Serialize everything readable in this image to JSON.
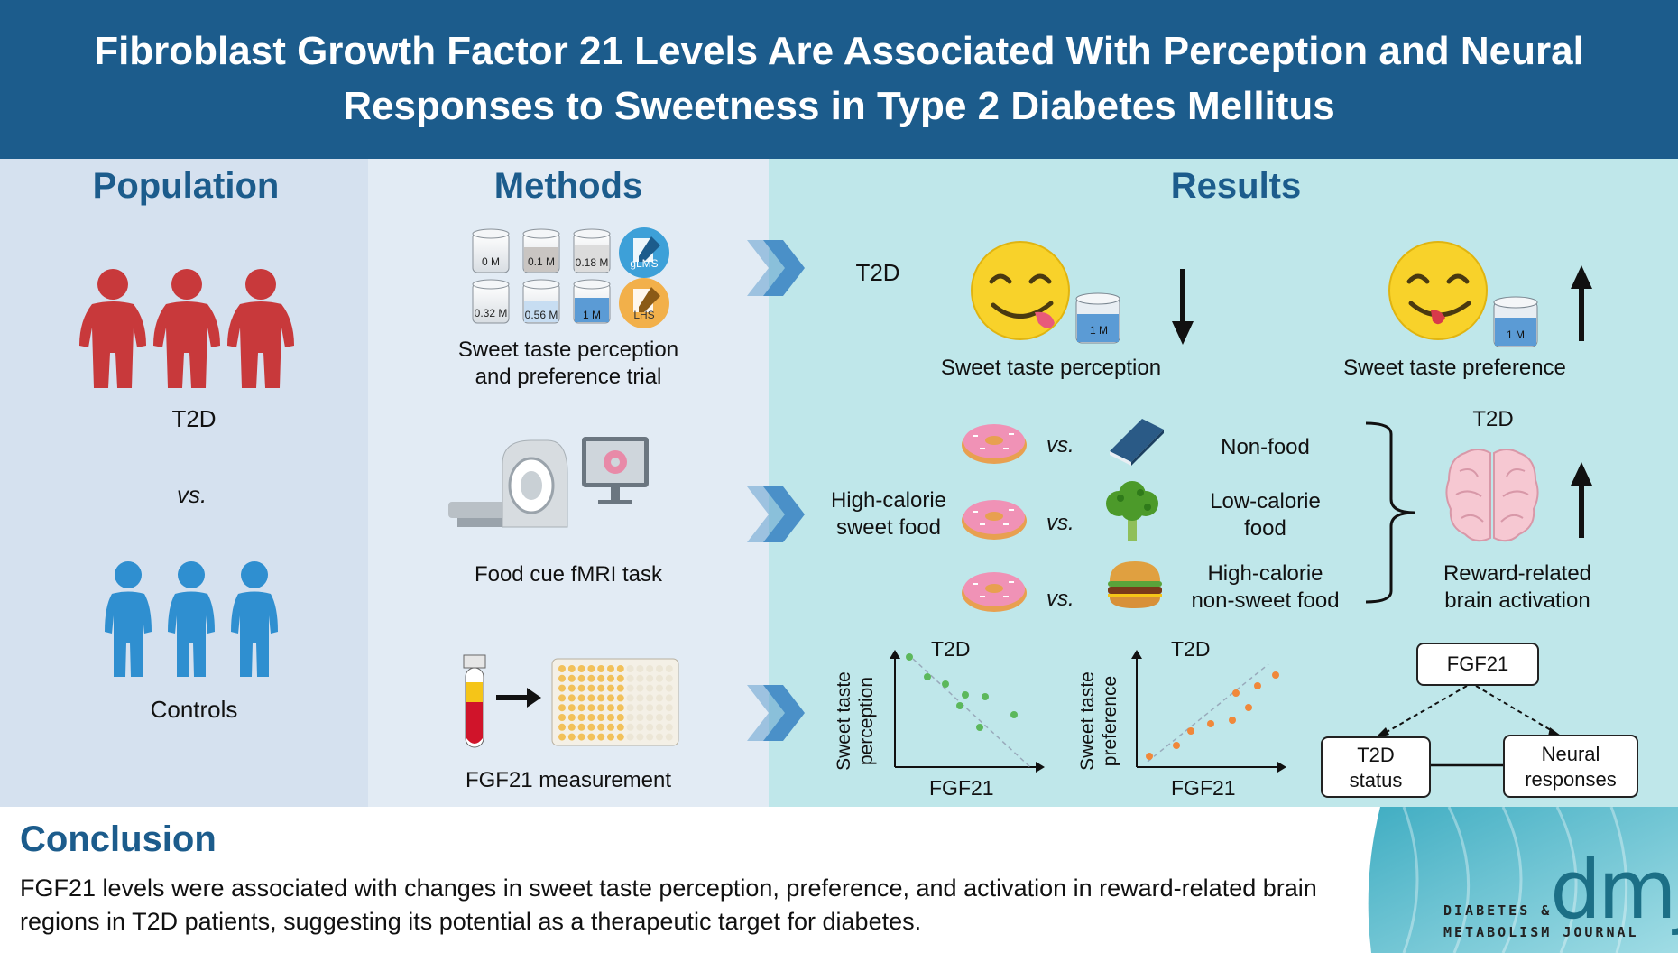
{
  "title": "Fibroblast Growth Factor 21 Levels Are Associated With Perception and Neural Responses to Sweetness in Type 2 Diabetes Mellitus",
  "population": {
    "heading": "Population",
    "group1": "T2D",
    "vs": "vs.",
    "group2": "Controls"
  },
  "methods": {
    "heading": "Methods",
    "cups": [
      "0 M",
      "0.1 M",
      "0.18 M",
      "0.32 M",
      "0.56 M",
      "1 M"
    ],
    "scale_badges": [
      "gLMS",
      "LHS"
    ],
    "trial_label_line1": "Sweet taste perception",
    "trial_label_line2": "and preference trial",
    "fmri_label": "Food cue fMRI task",
    "fgf21_label": "FGF21 measurement"
  },
  "results": {
    "heading": "Results",
    "row1": {
      "group": "T2D",
      "perception_label": "Sweet taste perception",
      "perception_cup": "1 M",
      "perception_direction": "down",
      "preference_label": "Sweet taste preference",
      "preference_cup": "1 M",
      "preference_direction": "up"
    },
    "row2": {
      "vs": "vs.",
      "left_label_line1": "High-calorie",
      "left_label_line2": "sweet food",
      "comparisons": [
        {
          "line1": "Non-food",
          "line2": ""
        },
        {
          "line1": "Low-calorie",
          "line2": "food"
        },
        {
          "line1": "High-calorie",
          "line2": "non-sweet food"
        }
      ],
      "group": "T2D",
      "outcome_line1": "Reward-related",
      "outcome_line2": "brain activation",
      "outcome_direction": "up"
    },
    "row3": {
      "plot1": {
        "title": "T2D",
        "ylabel_line1": "Sweet taste",
        "ylabel_line2": "perception",
        "xlabel": "FGF21",
        "trend": "negative",
        "color": "#5cb85c"
      },
      "plot2": {
        "title": "T2D",
        "ylabel_line1": "Sweet taste",
        "ylabel_line2": "preference",
        "xlabel": "FGF21",
        "trend": "positive",
        "color": "#f0883a"
      },
      "mediation": {
        "top": "FGF21",
        "left_line1": "T2D",
        "left_line2": "status",
        "right_line1": "Neural",
        "right_line2": "responses"
      }
    }
  },
  "conclusion": {
    "heading": "Conclusion",
    "text": "FGF21 levels were associated with changes in sweet taste perception, preference, and activation in reward-related brain regions in T2D patients, suggesting its potential as a therapeutic target for diabetes."
  },
  "journal": {
    "logo_letters": "dmj",
    "name_line1": "DIABETES &",
    "name_line2": "METABOLISM JOURNAL"
  },
  "colors": {
    "header": "#1c5c8c",
    "t2d_person": "#c8393b",
    "control_person": "#2f8fd0",
    "results_bg": "#bfe7ea",
    "chevron": "#4a90c8"
  }
}
